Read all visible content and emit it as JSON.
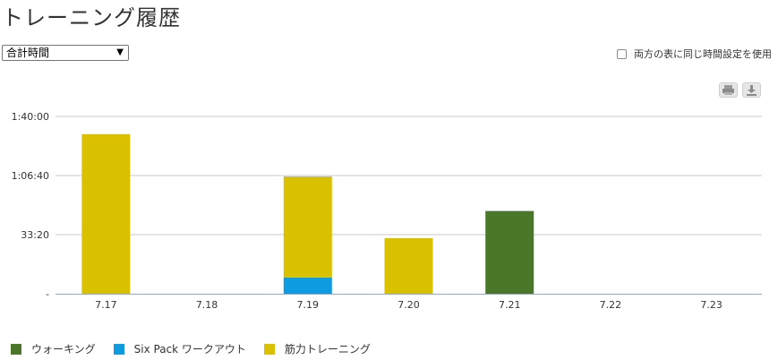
{
  "header": {
    "title": "トレーニング履歴"
  },
  "controls": {
    "metric_select_value": "合計時間",
    "same_time_label": "両方の表に同じ時間設定を使用"
  },
  "toolbar": {
    "print_icon": "print-icon",
    "download_icon": "download-icon"
  },
  "chart_data": {
    "type": "bar",
    "stacked": true,
    "categories": [
      "7.17",
      "7.18",
      "7.19",
      "7.20",
      "7.21",
      "7.22",
      "7.23"
    ],
    "y_unit": "seconds",
    "y_ticks": [
      {
        "value": 0,
        "label": "-"
      },
      {
        "value": 2000,
        "label": "33:20"
      },
      {
        "value": 4000,
        "label": "1:06:40"
      },
      {
        "value": 6000,
        "label": "1:40:00"
      }
    ],
    "ylim": [
      0,
      6000
    ],
    "grid": true,
    "legend_position": "bottom-left",
    "series": [
      {
        "name": "ウォーキング",
        "color": "#4a7729",
        "values": [
          0,
          0,
          0,
          0,
          2800,
          0,
          0
        ]
      },
      {
        "name": "Six Pack ワークアウト",
        "color": "#0e9be0",
        "values": [
          0,
          0,
          550,
          0,
          0,
          0,
          0
        ]
      },
      {
        "name": "筋力トレーニング",
        "color": "#d9c100",
        "values": [
          5400,
          0,
          3420,
          1880,
          0,
          0,
          0
        ]
      }
    ]
  }
}
